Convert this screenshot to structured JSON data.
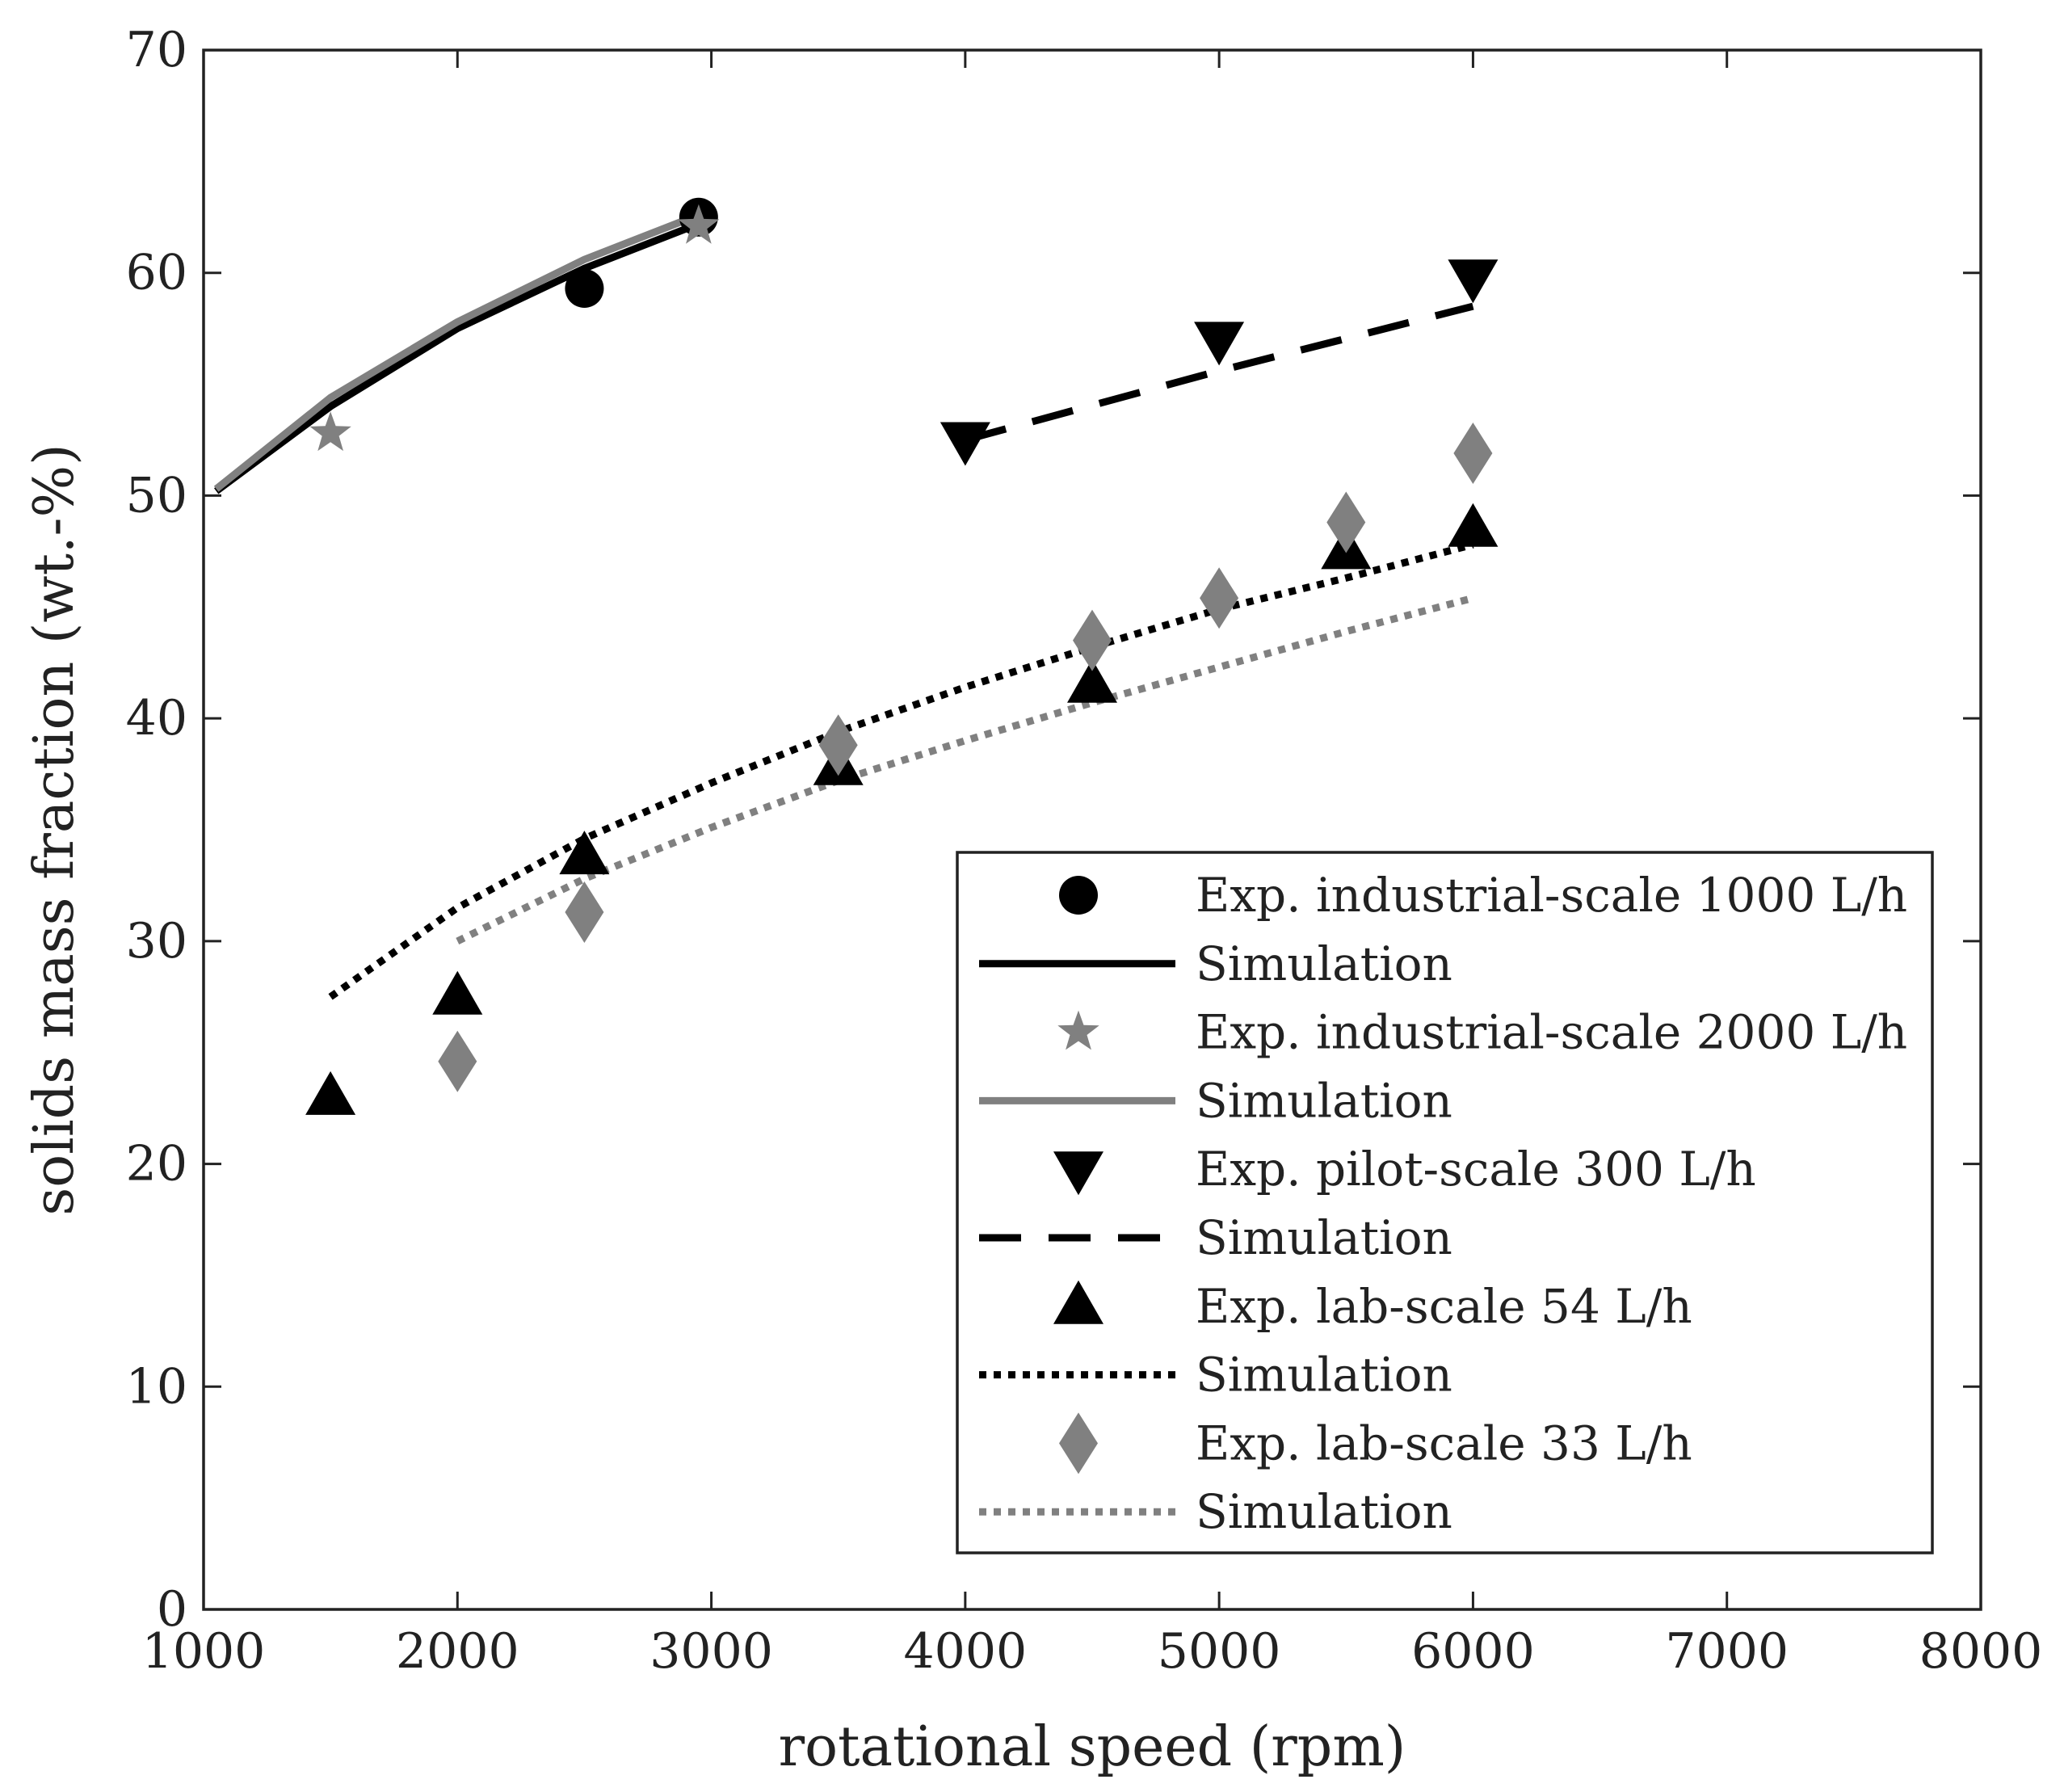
{
  "chart_data": {
    "type": "line",
    "xlabel": "rotational speed (rpm)",
    "ylabel": "solids mass fraction (wt.-%)",
    "xlim": [
      1000,
      8000
    ],
    "ylim": [
      0,
      70
    ],
    "xticks": [
      "1000",
      "2000",
      "3000",
      "4000",
      "5000",
      "6000",
      "7000",
      "8000"
    ],
    "yticks": [
      "0",
      "10",
      "20",
      "30",
      "40",
      "50",
      "60",
      "70"
    ],
    "grid": false,
    "legend_position": "bottom-right",
    "series": [
      {
        "name": "Exp. industrial-scale 1000 L/h",
        "kind": "marker",
        "marker": "circle",
        "color": "#000000",
        "x": [
          2500,
          2950
        ],
        "y": [
          59.3,
          62.5
        ]
      },
      {
        "name": "Simulation",
        "kind": "line",
        "style": "solid",
        "color": "#000000",
        "x": [
          1050,
          1500,
          2000,
          2500,
          2950
        ],
        "y": [
          50.2,
          54.0,
          57.5,
          60.2,
          62.2
        ]
      },
      {
        "name": "Exp. industrial-scale 2000 L/h",
        "kind": "marker",
        "marker": "star",
        "color": "#808080",
        "x": [
          1500,
          2950
        ],
        "y": [
          52.8,
          62.1
        ]
      },
      {
        "name": "Simulation",
        "kind": "line",
        "style": "solid",
        "color": "#808080",
        "x": [
          1050,
          1500,
          2000,
          2500,
          2950
        ],
        "y": [
          50.3,
          54.4,
          57.8,
          60.6,
          62.6
        ]
      },
      {
        "name": "Exp. pilot-scale 300 L/h",
        "kind": "marker",
        "marker": "triangle-down",
        "color": "#000000",
        "x": [
          4000,
          5000,
          6000
        ],
        "y": [
          52.5,
          57.0,
          59.8
        ]
      },
      {
        "name": "Simulation",
        "kind": "line",
        "style": "dashed",
        "color": "#000000",
        "x": [
          4000,
          5000,
          6000
        ],
        "y": [
          52.5,
          55.6,
          58.5
        ]
      },
      {
        "name": "Exp. lab-scale 54 L/h",
        "kind": "marker",
        "marker": "triangle-up",
        "color": "#000000",
        "x": [
          1500,
          2000,
          2500,
          3500,
          4500,
          5500,
          6000
        ],
        "y": [
          23.0,
          27.5,
          33.8,
          37.8,
          41.5,
          47.5,
          48.5
        ]
      },
      {
        "name": "Simulation",
        "kind": "line",
        "style": "dotted",
        "color": "#000000",
        "x": [
          1500,
          2000,
          2500,
          3000,
          3500,
          4000,
          4500,
          5000,
          5500,
          6000
        ],
        "y": [
          27.5,
          31.5,
          34.6,
          37.1,
          39.4,
          41.4,
          43.2,
          44.9,
          46.3,
          47.8
        ]
      },
      {
        "name": "Exp. lab-scale 33 L/h",
        "kind": "marker",
        "marker": "diamond",
        "color": "#808080",
        "x": [
          2000,
          2500,
          3500,
          4500,
          5000,
          5500,
          6000
        ],
        "y": [
          24.6,
          31.3,
          38.8,
          43.5,
          45.4,
          48.8,
          51.9
        ]
      },
      {
        "name": "Simulation",
        "kind": "line",
        "style": "dotted",
        "color": "#808080",
        "x": [
          2000,
          2500,
          3000,
          3500,
          4000,
          4500,
          5000,
          5500,
          6000
        ],
        "y": [
          30.0,
          32.8,
          35.1,
          37.2,
          39.0,
          40.7,
          42.3,
          43.9,
          45.4
        ]
      }
    ]
  }
}
